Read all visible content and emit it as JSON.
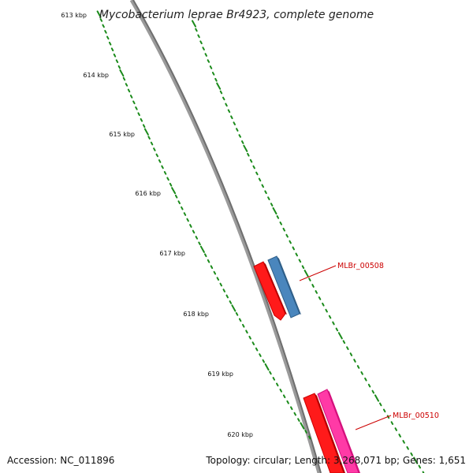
{
  "title": "Mycobacterium leprae Br4923, complete genome",
  "ticks": [
    "613 kbp",
    "614 kbp",
    "615 kbp",
    "616 kbp",
    "617 kbp",
    "618 kbp",
    "619 kbp",
    "620 kbp"
  ],
  "genes": [
    {
      "label": "MLBr_00508",
      "color": "#4682b4",
      "strand": "forward"
    },
    {
      "label": "MLBr_00510",
      "color": "#ff1493",
      "strand": "forward"
    }
  ],
  "red_feature_color": "#ff0000",
  "backbone_color": "#808080",
  "tick_color": "#008000",
  "footer": {
    "accession": "Accession: NC_011896",
    "summary": "Topology: circular; Length: 3,268,071 bp; Genes: 1,651"
  }
}
